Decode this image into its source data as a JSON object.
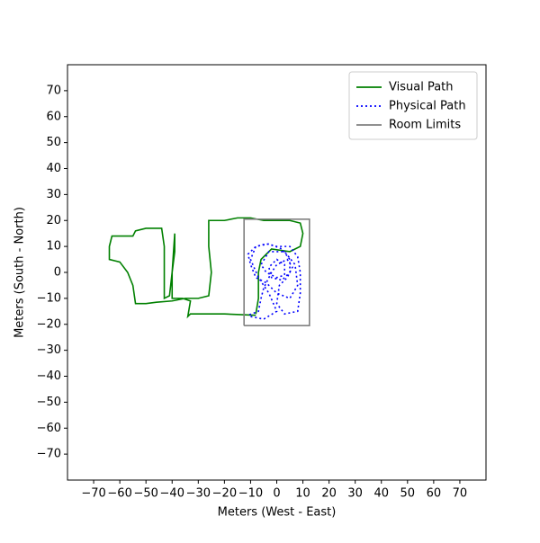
{
  "chart_data": {
    "type": "line",
    "xlabel": "Meters (West - East)",
    "ylabel": "Meters (South - North)",
    "xlim": [
      -80,
      80
    ],
    "ylim": [
      -80,
      80
    ],
    "xticks": [
      {
        "value": -70,
        "label": "−70"
      },
      {
        "value": -60,
        "label": "−60"
      },
      {
        "value": -50,
        "label": "−50"
      },
      {
        "value": -40,
        "label": "−40"
      },
      {
        "value": -30,
        "label": "−30"
      },
      {
        "value": -20,
        "label": "−20"
      },
      {
        "value": -10,
        "label": "−10"
      },
      0,
      10,
      20,
      30,
      40,
      50,
      60,
      70
    ],
    "yticks": [
      {
        "value": -70,
        "label": "−70"
      },
      {
        "value": -60,
        "label": "−60"
      },
      {
        "value": -50,
        "label": "−50"
      },
      {
        "value": -40,
        "label": "−40"
      },
      {
        "value": -30,
        "label": "−30"
      },
      {
        "value": -20,
        "label": "−20"
      },
      {
        "value": -10,
        "label": "−10"
      },
      0,
      10,
      20,
      30,
      40,
      50,
      60,
      70
    ],
    "legend": "upper right",
    "series": [
      {
        "name": "Visual Path",
        "color": "#008000",
        "linestyle": "solid",
        "x": [
          -8,
          -20,
          -33,
          -34,
          -33,
          -36,
          -40,
          -40,
          -39,
          -39,
          -40,
          -41,
          -43,
          -43,
          -43,
          -44,
          -50,
          -54,
          -55,
          -63,
          -64,
          -64,
          -60,
          -57,
          -55,
          -54,
          -50,
          -46,
          -40,
          -35,
          -30,
          -26,
          -25,
          -26,
          -26,
          -20,
          -15,
          -10,
          -5,
          5,
          9,
          10,
          9,
          5,
          -2,
          -6,
          -7,
          -7,
          -8
        ],
        "values": [
          -16.5,
          -16,
          -16,
          -17,
          -11,
          -10,
          -10,
          0,
          8,
          15,
          0,
          -9,
          -10,
          0,
          10,
          17,
          17,
          16,
          14,
          14,
          10,
          5,
          4,
          0,
          -5,
          -12,
          -12,
          -11.5,
          -11,
          -10,
          -10,
          -9,
          0,
          10,
          20,
          20,
          21,
          21,
          20,
          20,
          19,
          15,
          10,
          8,
          9,
          5,
          0,
          -10,
          -16
        ]
      },
      {
        "name": "Physical Path",
        "color": "#0000ff",
        "linestyle": "dotted",
        "x": [
          -10,
          -5,
          0,
          -3,
          -7,
          -10,
          -8,
          -3,
          2,
          5,
          5,
          2,
          -2,
          -3,
          0,
          3,
          3,
          0,
          -4,
          -6,
          -3,
          3,
          7,
          8,
          5,
          0,
          -4,
          -8,
          -10,
          -11,
          -8,
          -4,
          0,
          5,
          8,
          9,
          9,
          8,
          3,
          0,
          1,
          4,
          6,
          4,
          0,
          -2,
          -5,
          -6,
          -7,
          -11
        ],
        "values": [
          -17,
          -18,
          -15,
          -8,
          -2,
          5,
          10,
          11,
          9,
          5,
          0,
          -3,
          -2,
          2,
          5,
          3,
          -1,
          -2,
          0,
          3,
          8,
          8,
          3,
          -5,
          -10,
          -8,
          -4,
          -2,
          3,
          7,
          10,
          11,
          10,
          10,
          6,
          0,
          -8,
          -15,
          -16,
          -12,
          -5,
          -2,
          2,
          5,
          3,
          0,
          -6,
          -10,
          -15,
          -16.5
        ]
      },
      {
        "name": "Room Limits",
        "color": "#808080",
        "linestyle": "solid",
        "x": [
          -12.5,
          12.5,
          12.5,
          -12.5,
          -12.5
        ],
        "values": [
          -20.5,
          -20.5,
          20.5,
          20.5,
          -20.5
        ]
      }
    ]
  }
}
